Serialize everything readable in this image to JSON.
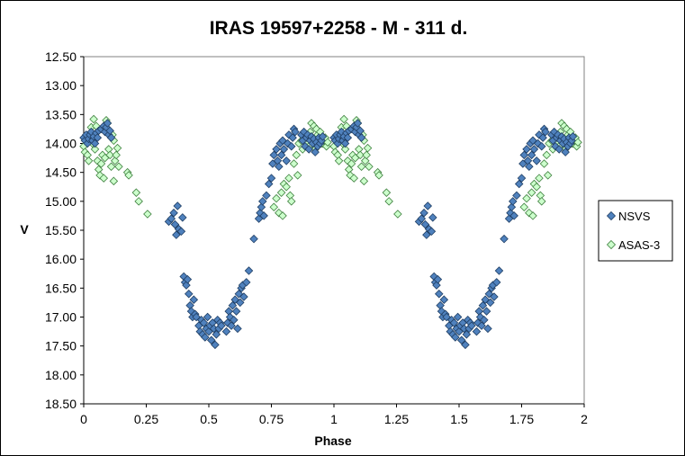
{
  "chart_data": {
    "type": "scatter",
    "title": "IRAS 19597+2258  - M - 311 d.",
    "xlabel": "Phase",
    "ylabel": "V",
    "xlim": [
      0,
      2
    ],
    "ylim": [
      12.5,
      18.5
    ],
    "y_inverted": true,
    "grid": false,
    "legend_position": "right",
    "x_ticks": [
      "0",
      "0.25",
      "0.5",
      "0.75",
      "1",
      "1.25",
      "1.5",
      "1.75",
      "2"
    ],
    "x_tick_values": [
      0,
      0.25,
      0.5,
      0.75,
      1,
      1.25,
      1.5,
      1.75,
      2
    ],
    "y_ticks": [
      "12.50",
      "13.00",
      "13.50",
      "14.00",
      "14.50",
      "15.00",
      "15.50",
      "16.00",
      "16.50",
      "17.00",
      "17.50",
      "18.00",
      "18.50"
    ],
    "y_tick_values": [
      12.5,
      13,
      13.5,
      14,
      14.5,
      15,
      15.5,
      16,
      16.5,
      17,
      17.5,
      18,
      18.5
    ],
    "series": [
      {
        "name": "NSVS",
        "marker": "diamond",
        "color": "#4f81bd",
        "stroke": "#1f3e63",
        "base_points": [
          [
            0.0,
            13.9
          ],
          [
            0.005,
            13.95
          ],
          [
            0.01,
            13.85
          ],
          [
            0.015,
            14.0
          ],
          [
            0.02,
            13.92
          ],
          [
            0.025,
            13.85
          ],
          [
            0.03,
            13.8
          ],
          [
            0.035,
            13.95
          ],
          [
            0.04,
            13.88
          ],
          [
            0.045,
            14.0
          ],
          [
            0.05,
            13.82
          ],
          [
            0.055,
            13.9
          ],
          [
            0.06,
            13.78
          ],
          [
            0.07,
            13.75
          ],
          [
            0.08,
            13.7
          ],
          [
            0.085,
            13.8
          ],
          [
            0.09,
            13.72
          ],
          [
            0.095,
            13.65
          ],
          [
            0.1,
            13.85
          ],
          [
            0.105,
            13.78
          ],
          [
            0.11,
            13.9
          ],
          [
            0.34,
            15.35
          ],
          [
            0.35,
            15.3
          ],
          [
            0.36,
            15.2
          ],
          [
            0.365,
            15.4
          ],
          [
            0.37,
            15.58
          ],
          [
            0.375,
            15.08
          ],
          [
            0.38,
            15.48
          ],
          [
            0.39,
            15.52
          ],
          [
            0.395,
            15.28
          ],
          [
            0.4,
            16.3
          ],
          [
            0.405,
            16.4
          ],
          [
            0.41,
            16.45
          ],
          [
            0.415,
            16.35
          ],
          [
            0.42,
            16.6
          ],
          [
            0.425,
            16.8
          ],
          [
            0.43,
            16.9
          ],
          [
            0.435,
            17.0
          ],
          [
            0.44,
            16.7
          ],
          [
            0.445,
            16.95
          ],
          [
            0.45,
            17.0
          ],
          [
            0.46,
            17.15
          ],
          [
            0.465,
            17.25
          ],
          [
            0.47,
            17.05
          ],
          [
            0.475,
            17.3
          ],
          [
            0.48,
            17.1
          ],
          [
            0.485,
            17.35
          ],
          [
            0.49,
            17.2
          ],
          [
            0.495,
            17.0
          ],
          [
            0.5,
            17.25
          ],
          [
            0.505,
            17.15
          ],
          [
            0.51,
            17.4
          ],
          [
            0.515,
            17.1
          ],
          [
            0.52,
            17.2
          ],
          [
            0.525,
            17.48
          ],
          [
            0.53,
            17.3
          ],
          [
            0.535,
            17.05
          ],
          [
            0.54,
            17.2
          ],
          [
            0.545,
            17.1
          ],
          [
            0.55,
            17.15
          ],
          [
            0.57,
            17.25
          ],
          [
            0.575,
            17.1
          ],
          [
            0.58,
            16.9
          ],
          [
            0.585,
            17.0
          ],
          [
            0.59,
            17.15
          ],
          [
            0.595,
            16.8
          ],
          [
            0.6,
            17.05
          ],
          [
            0.605,
            16.7
          ],
          [
            0.61,
            16.9
          ],
          [
            0.615,
            17.2
          ],
          [
            0.62,
            16.6
          ],
          [
            0.625,
            16.75
          ],
          [
            0.63,
            16.5
          ],
          [
            0.635,
            16.45
          ],
          [
            0.64,
            16.65
          ],
          [
            0.65,
            16.4
          ],
          [
            0.66,
            16.2
          ],
          [
            0.68,
            15.65
          ],
          [
            0.7,
            15.3
          ],
          [
            0.705,
            15.2
          ],
          [
            0.71,
            15.1
          ],
          [
            0.715,
            15.0
          ],
          [
            0.72,
            15.25
          ],
          [
            0.73,
            14.9
          ],
          [
            0.74,
            14.7
          ],
          [
            0.75,
            14.6
          ],
          [
            0.755,
            14.35
          ],
          [
            0.76,
            14.2
          ],
          [
            0.77,
            14.1
          ],
          [
            0.775,
            14.3
          ],
          [
            0.78,
            14.4
          ],
          [
            0.785,
            14.0
          ],
          [
            0.79,
            14.2
          ],
          [
            0.795,
            13.95
          ],
          [
            0.8,
            14.1
          ],
          [
            0.81,
            14.3
          ],
          [
            0.815,
            14.0
          ],
          [
            0.82,
            13.85
          ],
          [
            0.83,
            14.05
          ],
          [
            0.835,
            13.9
          ],
          [
            0.84,
            13.75
          ],
          [
            0.845,
            13.8
          ],
          [
            0.87,
            13.85
          ],
          [
            0.875,
            13.95
          ],
          [
            0.88,
            13.8
          ],
          [
            0.885,
            14.05
          ],
          [
            0.89,
            13.9
          ],
          [
            0.895,
            13.85
          ],
          [
            0.9,
            14.1
          ],
          [
            0.905,
            13.95
          ],
          [
            0.91,
            13.88
          ],
          [
            0.915,
            14.0
          ],
          [
            0.92,
            13.92
          ],
          [
            0.925,
            14.15
          ],
          [
            0.93,
            13.98
          ],
          [
            0.935,
            14.05
          ],
          [
            0.94,
            13.9
          ],
          [
            0.945,
            14.0
          ],
          [
            0.95,
            13.95
          ],
          [
            0.955,
            13.88
          ]
        ]
      },
      {
        "name": "ASAS-3",
        "marker": "diamond",
        "color": "#ccffcc",
        "stroke": "#3f7f3f",
        "base_points": [
          [
            0.0,
            14.05
          ],
          [
            0.005,
            14.15
          ],
          [
            0.01,
            13.9
          ],
          [
            0.015,
            14.2
          ],
          [
            0.02,
            14.3
          ],
          [
            0.025,
            13.85
          ],
          [
            0.03,
            13.72
          ],
          [
            0.035,
            14.0
          ],
          [
            0.04,
            13.58
          ],
          [
            0.045,
            14.1
          ],
          [
            0.05,
            13.7
          ],
          [
            0.055,
            14.3
          ],
          [
            0.06,
            14.45
          ],
          [
            0.065,
            14.55
          ],
          [
            0.07,
            14.35
          ],
          [
            0.075,
            14.2
          ],
          [
            0.08,
            14.6
          ],
          [
            0.085,
            14.25
          ],
          [
            0.09,
            13.6
          ],
          [
            0.095,
            13.65
          ],
          [
            0.1,
            14.1
          ],
          [
            0.105,
            14.2
          ],
          [
            0.11,
            14.4
          ],
          [
            0.115,
            13.85
          ],
          [
            0.12,
            13.95
          ],
          [
            0.125,
            14.3
          ],
          [
            0.13,
            14.2
          ],
          [
            0.135,
            14.08
          ],
          [
            0.14,
            14.4
          ],
          [
            0.12,
            14.65
          ],
          [
            0.175,
            14.5
          ],
          [
            0.18,
            14.55
          ],
          [
            0.21,
            14.85
          ],
          [
            0.22,
            15.0
          ],
          [
            0.255,
            15.22
          ],
          [
            0.76,
            15.1
          ],
          [
            0.77,
            14.95
          ],
          [
            0.78,
            15.2
          ],
          [
            0.79,
            14.85
          ],
          [
            0.795,
            15.25
          ],
          [
            0.8,
            14.7
          ],
          [
            0.81,
            14.75
          ],
          [
            0.82,
            14.6
          ],
          [
            0.825,
            14.9
          ],
          [
            0.83,
            15.0
          ],
          [
            0.84,
            14.35
          ],
          [
            0.85,
            14.2
          ],
          [
            0.855,
            14.55
          ],
          [
            0.86,
            14.0
          ],
          [
            0.87,
            13.95
          ],
          [
            0.875,
            14.1
          ],
          [
            0.88,
            13.85
          ],
          [
            0.89,
            14.0
          ],
          [
            0.895,
            13.9
          ],
          [
            0.9,
            14.05
          ],
          [
            0.905,
            13.8
          ],
          [
            0.91,
            13.65
          ],
          [
            0.915,
            13.95
          ],
          [
            0.92,
            13.7
          ],
          [
            0.925,
            14.1
          ],
          [
            0.93,
            13.75
          ],
          [
            0.935,
            13.85
          ],
          [
            0.94,
            13.9
          ],
          [
            0.945,
            13.8
          ],
          [
            0.95,
            14.0
          ],
          [
            0.955,
            14.0
          ],
          [
            0.96,
            13.95
          ],
          [
            0.965,
            13.9
          ],
          [
            0.97,
            14.05
          ],
          [
            0.975,
            13.98
          ]
        ]
      }
    ]
  }
}
